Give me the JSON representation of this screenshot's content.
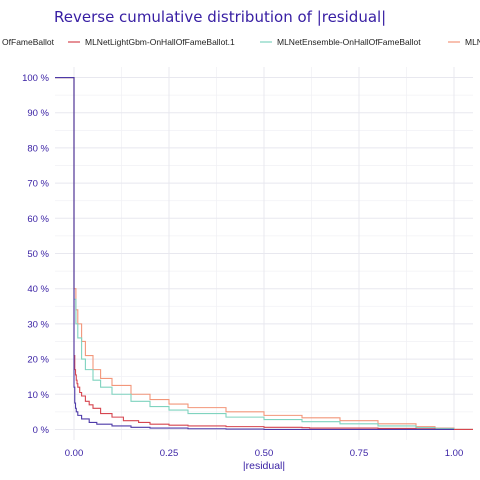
{
  "colors": {
    "title": "#371ea3",
    "axis_text": "#371ea3",
    "grid": "#e8e8ef",
    "legend_text": "#222222"
  },
  "chart_data": {
    "type": "line",
    "title": "Reverse cumulative distribution of |residual|",
    "xlabel": "|residual|",
    "ylabel": "",
    "xlim": [
      -0.05,
      1.05
    ],
    "ylim": [
      -0.03,
      1.03
    ],
    "x_ticks": [
      0.0,
      0.25,
      0.5,
      0.75,
      1.0
    ],
    "x_tick_labels": [
      "0.00",
      "0.25",
      "0.50",
      "0.75",
      "1.00"
    ],
    "y_ticks": [
      0,
      0.1,
      0.2,
      0.3,
      0.4,
      0.5,
      0.6,
      0.7,
      0.8,
      0.9,
      1.0
    ],
    "y_tick_labels": [
      "0 %",
      "10 %",
      "20 %",
      "30 %",
      "40 %",
      "50 %",
      "60 %",
      "70 %",
      "80 %",
      "90 %",
      "100 %"
    ],
    "grid": true,
    "legend_position": "top",
    "series": [
      {
        "name": "MLNetFastTree-OnHallOfFameBallot",
        "legend_label": "OfFameBallot",
        "color": "#4d3aa8",
        "x": [
          -0.05,
          0.0,
          0.0,
          0.002,
          0.004,
          0.006,
          0.01,
          0.02,
          0.04,
          0.06,
          0.1,
          0.15,
          0.2,
          0.3,
          0.4,
          0.5,
          0.6,
          0.8,
          1.0
        ],
        "y": [
          1.0,
          1.0,
          0.12,
          0.075,
          0.06,
          0.05,
          0.04,
          0.03,
          0.02,
          0.015,
          0.01,
          0.006,
          0.004,
          0.002,
          0.001,
          0.0,
          0.0,
          0.0,
          0.0
        ]
      },
      {
        "name": "MLNetLightGbm-OnHallOfFameBallot.1",
        "legend_label": "MLNetLightGbm-OnHallOfFameBallot.1",
        "color": "#d6454f",
        "x": [
          -0.05,
          0.0,
          0.0,
          0.002,
          0.004,
          0.006,
          0.008,
          0.01,
          0.015,
          0.02,
          0.03,
          0.04,
          0.05,
          0.07,
          0.1,
          0.13,
          0.17,
          0.2,
          0.25,
          0.3,
          0.4,
          0.5,
          0.6,
          0.62,
          0.75,
          0.8,
          0.9,
          0.95,
          1.0,
          1.05
        ],
        "y": [
          1.0,
          1.0,
          0.21,
          0.17,
          0.155,
          0.14,
          0.13,
          0.12,
          0.105,
          0.095,
          0.08,
          0.07,
          0.06,
          0.045,
          0.035,
          0.025,
          0.02,
          0.015,
          0.012,
          0.01,
          0.008,
          0.006,
          0.005,
          0.004,
          0.004,
          0.003,
          0.002,
          0.0,
          0.0,
          0.0
        ]
      },
      {
        "name": "MLNetEnsemble-OnHallOfFameBallot",
        "legend_label": "MLNetEnsemble-OnHallOfFameBallot",
        "color": "#7fd3bf",
        "x": [
          -0.05,
          0.0,
          0.0,
          0.005,
          0.01,
          0.02,
          0.03,
          0.05,
          0.07,
          0.1,
          0.15,
          0.2,
          0.25,
          0.3,
          0.4,
          0.5,
          0.6,
          0.7,
          0.8,
          0.9,
          0.95,
          1.0,
          1.05
        ],
        "y": [
          1.0,
          1.0,
          0.37,
          0.3,
          0.26,
          0.2,
          0.17,
          0.14,
          0.12,
          0.1,
          0.08,
          0.065,
          0.055,
          0.045,
          0.035,
          0.028,
          0.022,
          0.016,
          0.01,
          0.005,
          0.003,
          0.0,
          0.0
        ]
      },
      {
        "name": "MLNetNeuralNetwork-OnHallOfFameBallot",
        "legend_label": "MLNe",
        "color": "#f2967a",
        "x": [
          -0.05,
          0.0,
          0.0,
          0.005,
          0.01,
          0.02,
          0.03,
          0.05,
          0.07,
          0.1,
          0.15,
          0.2,
          0.25,
          0.3,
          0.4,
          0.5,
          0.6,
          0.7,
          0.8,
          0.9,
          0.95,
          1.0,
          1.05
        ],
        "y": [
          1.0,
          1.0,
          0.4,
          0.34,
          0.3,
          0.25,
          0.21,
          0.17,
          0.145,
          0.125,
          0.1,
          0.085,
          0.072,
          0.062,
          0.05,
          0.04,
          0.033,
          0.025,
          0.016,
          0.008,
          0.004,
          0.0,
          0.0
        ]
      }
    ]
  }
}
